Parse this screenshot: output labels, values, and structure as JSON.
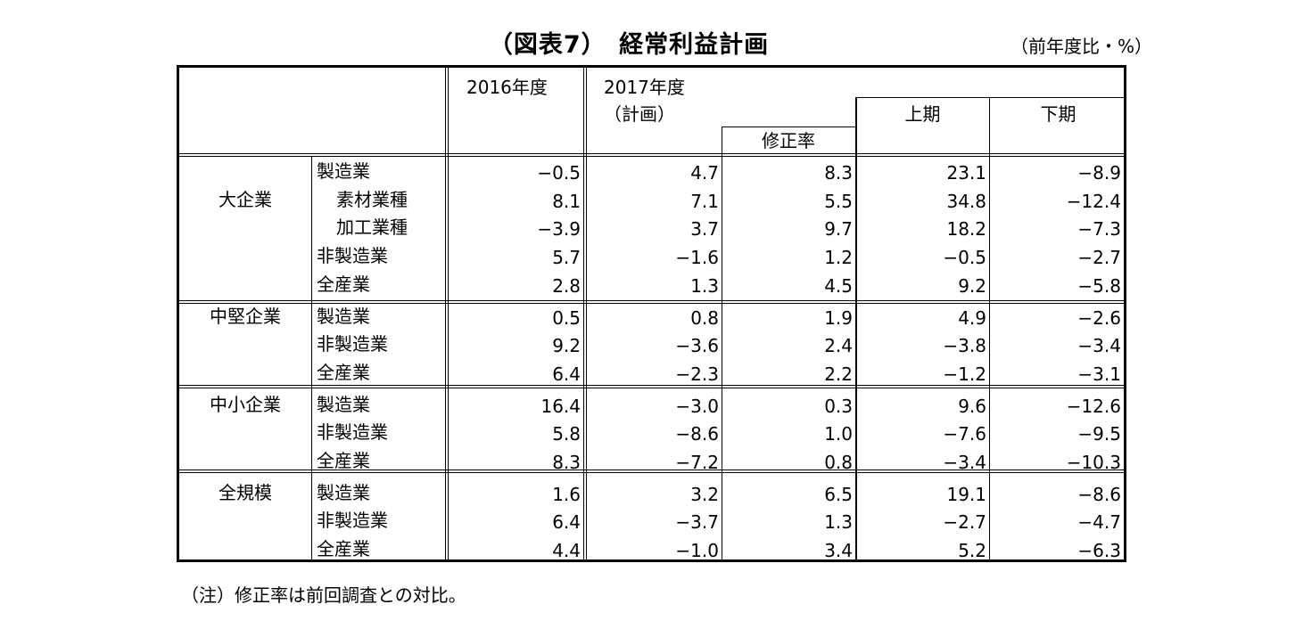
{
  "title": "（図表7）　経常利益計画",
  "unit": "（前年度比・%）",
  "note": "（注）修正率は前回調査との対比。",
  "header": {
    "y2016": "2016年度",
    "y2017": "2017年度",
    "plan": "（計画）",
    "revision": "修正率",
    "first_half": "上期",
    "second_half": "下期"
  },
  "groups": [
    {
      "name": "大企業",
      "rows": [
        {
          "label": "製造業",
          "values": [
            "−0.5",
            "4.7",
            "8.3",
            "23.1",
            "−8.9"
          ]
        },
        {
          "label": "素材業種",
          "values": [
            "8.1",
            "7.1",
            "5.5",
            "34.8",
            "−12.4"
          ]
        },
        {
          "label": "加工業種",
          "values": [
            "−3.9",
            "3.7",
            "9.7",
            "18.2",
            "−7.3"
          ]
        },
        {
          "label": "非製造業",
          "values": [
            "5.7",
            "−1.6",
            "1.2",
            "−0.5",
            "−2.7"
          ]
        },
        {
          "label": "全産業",
          "values": [
            "2.8",
            "1.3",
            "4.5",
            "9.2",
            "−5.8"
          ]
        }
      ]
    },
    {
      "name": "中堅企業",
      "rows": [
        {
          "label": "製造業",
          "values": [
            "0.5",
            "0.8",
            "1.9",
            "4.9",
            "−2.6"
          ]
        },
        {
          "label": "非製造業",
          "values": [
            "9.2",
            "−3.6",
            "2.4",
            "−3.8",
            "−3.4"
          ]
        },
        {
          "label": "全産業",
          "values": [
            "6.4",
            "−2.3",
            "2.2",
            "−1.2",
            "−3.1"
          ]
        }
      ]
    },
    {
      "name": "中小企業",
      "rows": [
        {
          "label": "製造業",
          "values": [
            "16.4",
            "−3.0",
            "0.3",
            "9.6",
            "−12.6"
          ]
        },
        {
          "label": "非製造業",
          "values": [
            "5.8",
            "−8.6",
            "1.0",
            "−7.6",
            "−9.5"
          ]
        },
        {
          "label": "全産業",
          "values": [
            "8.3",
            "−7.2",
            "0.8",
            "−3.4",
            "−10.3"
          ]
        }
      ]
    },
    {
      "name": "全規模",
      "rows": [
        {
          "label": "製造業",
          "values": [
            "1.6",
            "3.2",
            "6.5",
            "19.1",
            "−8.6"
          ]
        },
        {
          "label": "非製造業",
          "values": [
            "6.4",
            "−3.7",
            "1.3",
            "−2.7",
            "−4.7"
          ]
        },
        {
          "label": "全産業",
          "values": [
            "4.4",
            "−1.0",
            "3.4",
            "5.2",
            "−6.3"
          ]
        }
      ]
    }
  ]
}
